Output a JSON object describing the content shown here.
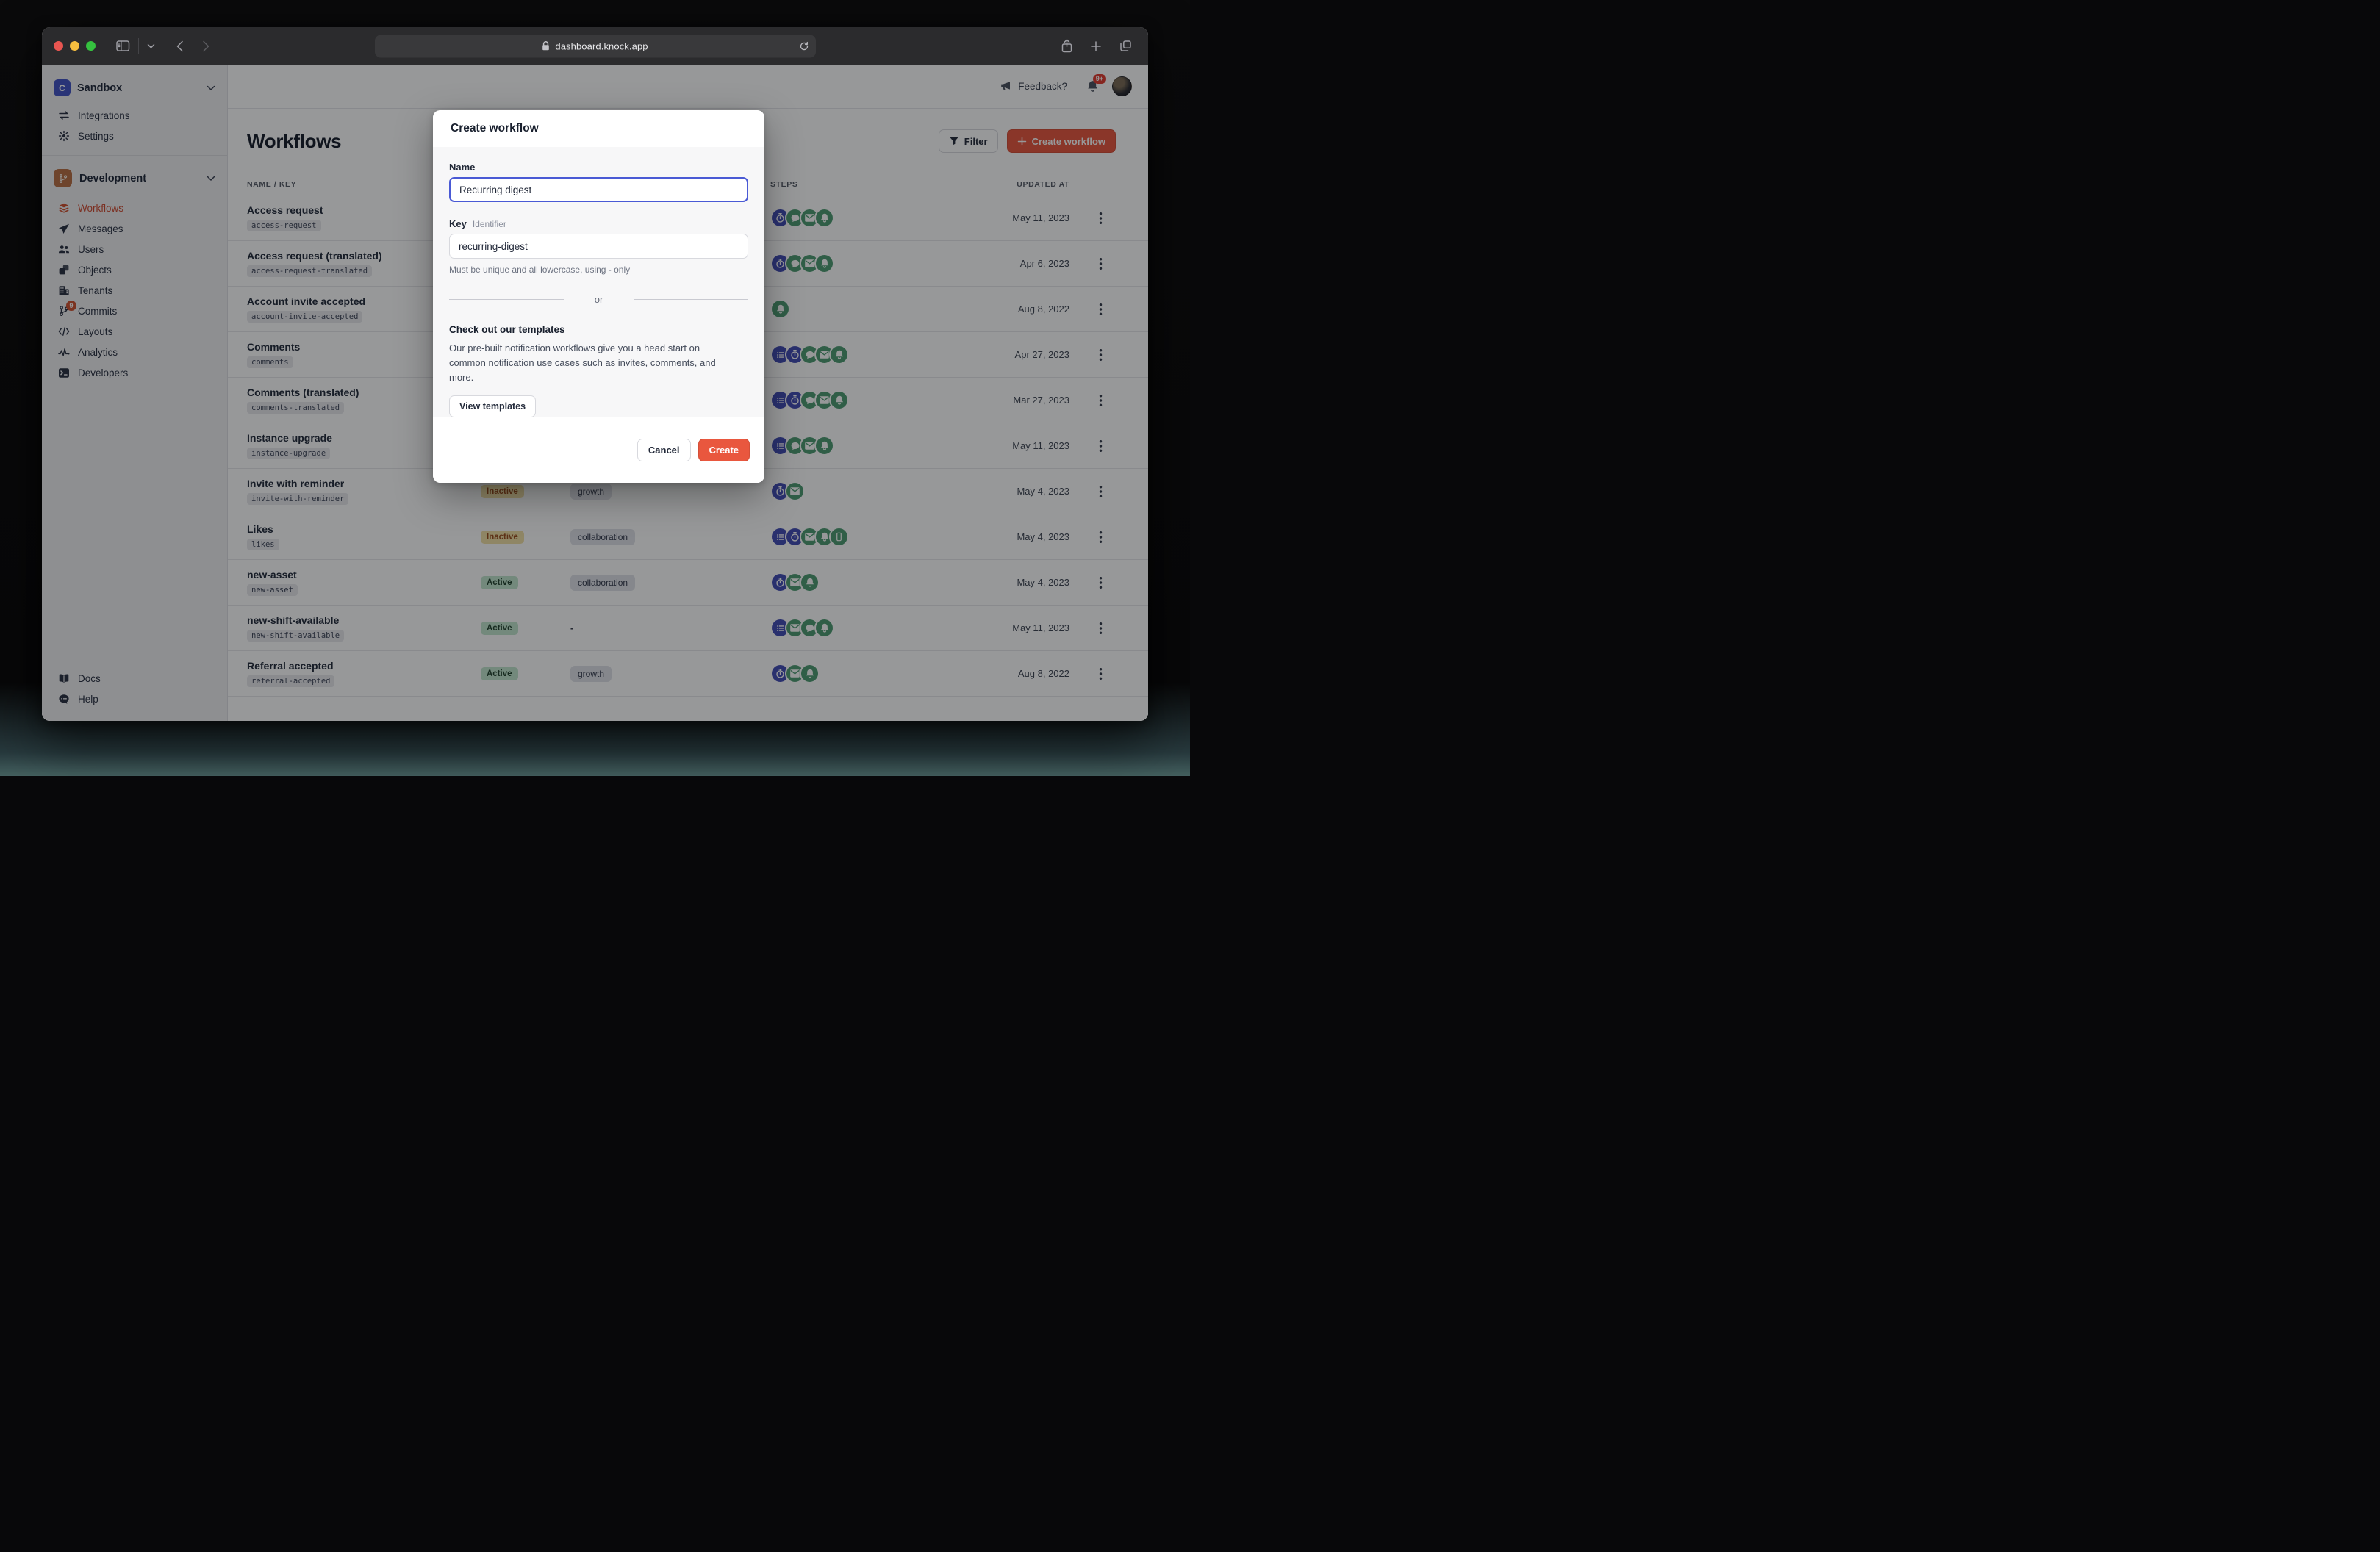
{
  "browser": {
    "url": "dashboard.knock.app"
  },
  "account_switcher": {
    "name": "Sandbox",
    "logo_letter": "C"
  },
  "sidebar": {
    "top_items": [
      {
        "label": "Integrations"
      },
      {
        "label": "Settings"
      }
    ],
    "environment": {
      "label": "Development"
    },
    "nav_items": [
      {
        "label": "Workflows",
        "active": true
      },
      {
        "label": "Messages"
      },
      {
        "label": "Users"
      },
      {
        "label": "Objects"
      },
      {
        "label": "Tenants"
      },
      {
        "label": "Commits",
        "badge": "9"
      },
      {
        "label": "Layouts"
      },
      {
        "label": "Analytics"
      },
      {
        "label": "Developers"
      }
    ],
    "bottom_items": [
      {
        "label": "Docs"
      },
      {
        "label": "Help"
      }
    ]
  },
  "header": {
    "feedback_label": "Feedback?",
    "notification_badge": "9+"
  },
  "page": {
    "title": "Workflows",
    "filter_label": "Filter",
    "create_button_label": "Create workflow"
  },
  "table": {
    "columns": [
      "NAME / KEY",
      "STEPS",
      "UPDATED AT"
    ],
    "rows": [
      {
        "name": "Access request",
        "key": "access-request",
        "status": null,
        "category": null,
        "steps": [
          "timer:blue",
          "chat:green",
          "mail:green",
          "bell:green"
        ],
        "updated_at": "May 11, 2023"
      },
      {
        "name": "Access request (translated)",
        "key": "access-request-translated",
        "status": null,
        "category": null,
        "steps": [
          "timer:blue",
          "chat:green",
          "mail:green",
          "bell:green"
        ],
        "updated_at": "Apr 6, 2023"
      },
      {
        "name": "Account invite accepted",
        "key": "account-invite-accepted",
        "status": null,
        "category": null,
        "steps": [
          "bell:green"
        ],
        "updated_at": "Aug 8, 2022"
      },
      {
        "name": "Comments",
        "key": "comments",
        "status": null,
        "category": null,
        "steps": [
          "list:blue",
          "timer:blue",
          "chat:green",
          "mail:green",
          "bell:green"
        ],
        "updated_at": "Apr 27, 2023"
      },
      {
        "name": "Comments (translated)",
        "key": "comments-translated",
        "status": null,
        "category": null,
        "steps": [
          "list:blue",
          "timer:blue",
          "chat:green",
          "mail:green",
          "bell:green"
        ],
        "updated_at": "Mar 27, 2023"
      },
      {
        "name": "Instance upgrade",
        "key": "instance-upgrade",
        "status": null,
        "category": null,
        "steps": [
          "list:blue",
          "chat:green",
          "mail:green",
          "bell:green"
        ],
        "updated_at": "May 11, 2023"
      },
      {
        "name": "Invite with reminder",
        "key": "invite-with-reminder",
        "status": "Inactive",
        "category": "growth",
        "steps": [
          "timer:blue",
          "mail:green"
        ],
        "updated_at": "May 4, 2023"
      },
      {
        "name": "Likes",
        "key": "likes",
        "status": "Inactive",
        "category": "collaboration",
        "steps": [
          "list:blue",
          "timer:blue",
          "mail:green",
          "bell:green",
          "phone:green"
        ],
        "updated_at": "May 4, 2023"
      },
      {
        "name": "new-asset",
        "key": "new-asset",
        "status": "Active",
        "category": "collaboration",
        "steps": [
          "timer:blue",
          "mail:green",
          "bell:green"
        ],
        "updated_at": "May 4, 2023"
      },
      {
        "name": "new-shift-available",
        "key": "new-shift-available",
        "status": "Active",
        "category": "-",
        "steps": [
          "list:blue",
          "mail:green",
          "chat:green",
          "bell:green"
        ],
        "updated_at": "May 11, 2023"
      },
      {
        "name": "Referral accepted",
        "key": "referral-accepted",
        "status": "Active",
        "category": "growth",
        "steps": [
          "timer:blue",
          "mail:green",
          "bell:green"
        ],
        "updated_at": "Aug 8, 2022"
      }
    ]
  },
  "modal": {
    "title": "Create workflow",
    "name_field": {
      "label": "Name",
      "value": "Recurring digest"
    },
    "key_field": {
      "label": "Key",
      "sublabel": "Identifier",
      "value": "recurring-digest",
      "helper": "Must be unique and all lowercase, using - only"
    },
    "divider_label": "or",
    "templates": {
      "heading": "Check out our templates",
      "body": "Our pre-built notification workflows give you a head start on common notification use cases such as invites, comments, and more.",
      "button_label": "View templates"
    },
    "cancel_label": "Cancel",
    "create_label": "Create"
  },
  "colors": {
    "accent_red": "#e9573e",
    "focus_blue": "#4a5ad5",
    "step_blue": "#434cb5",
    "step_green": "#4e9c72",
    "inactive_bg": "#f1e0a5",
    "active_bg": "#c2e5ce"
  }
}
